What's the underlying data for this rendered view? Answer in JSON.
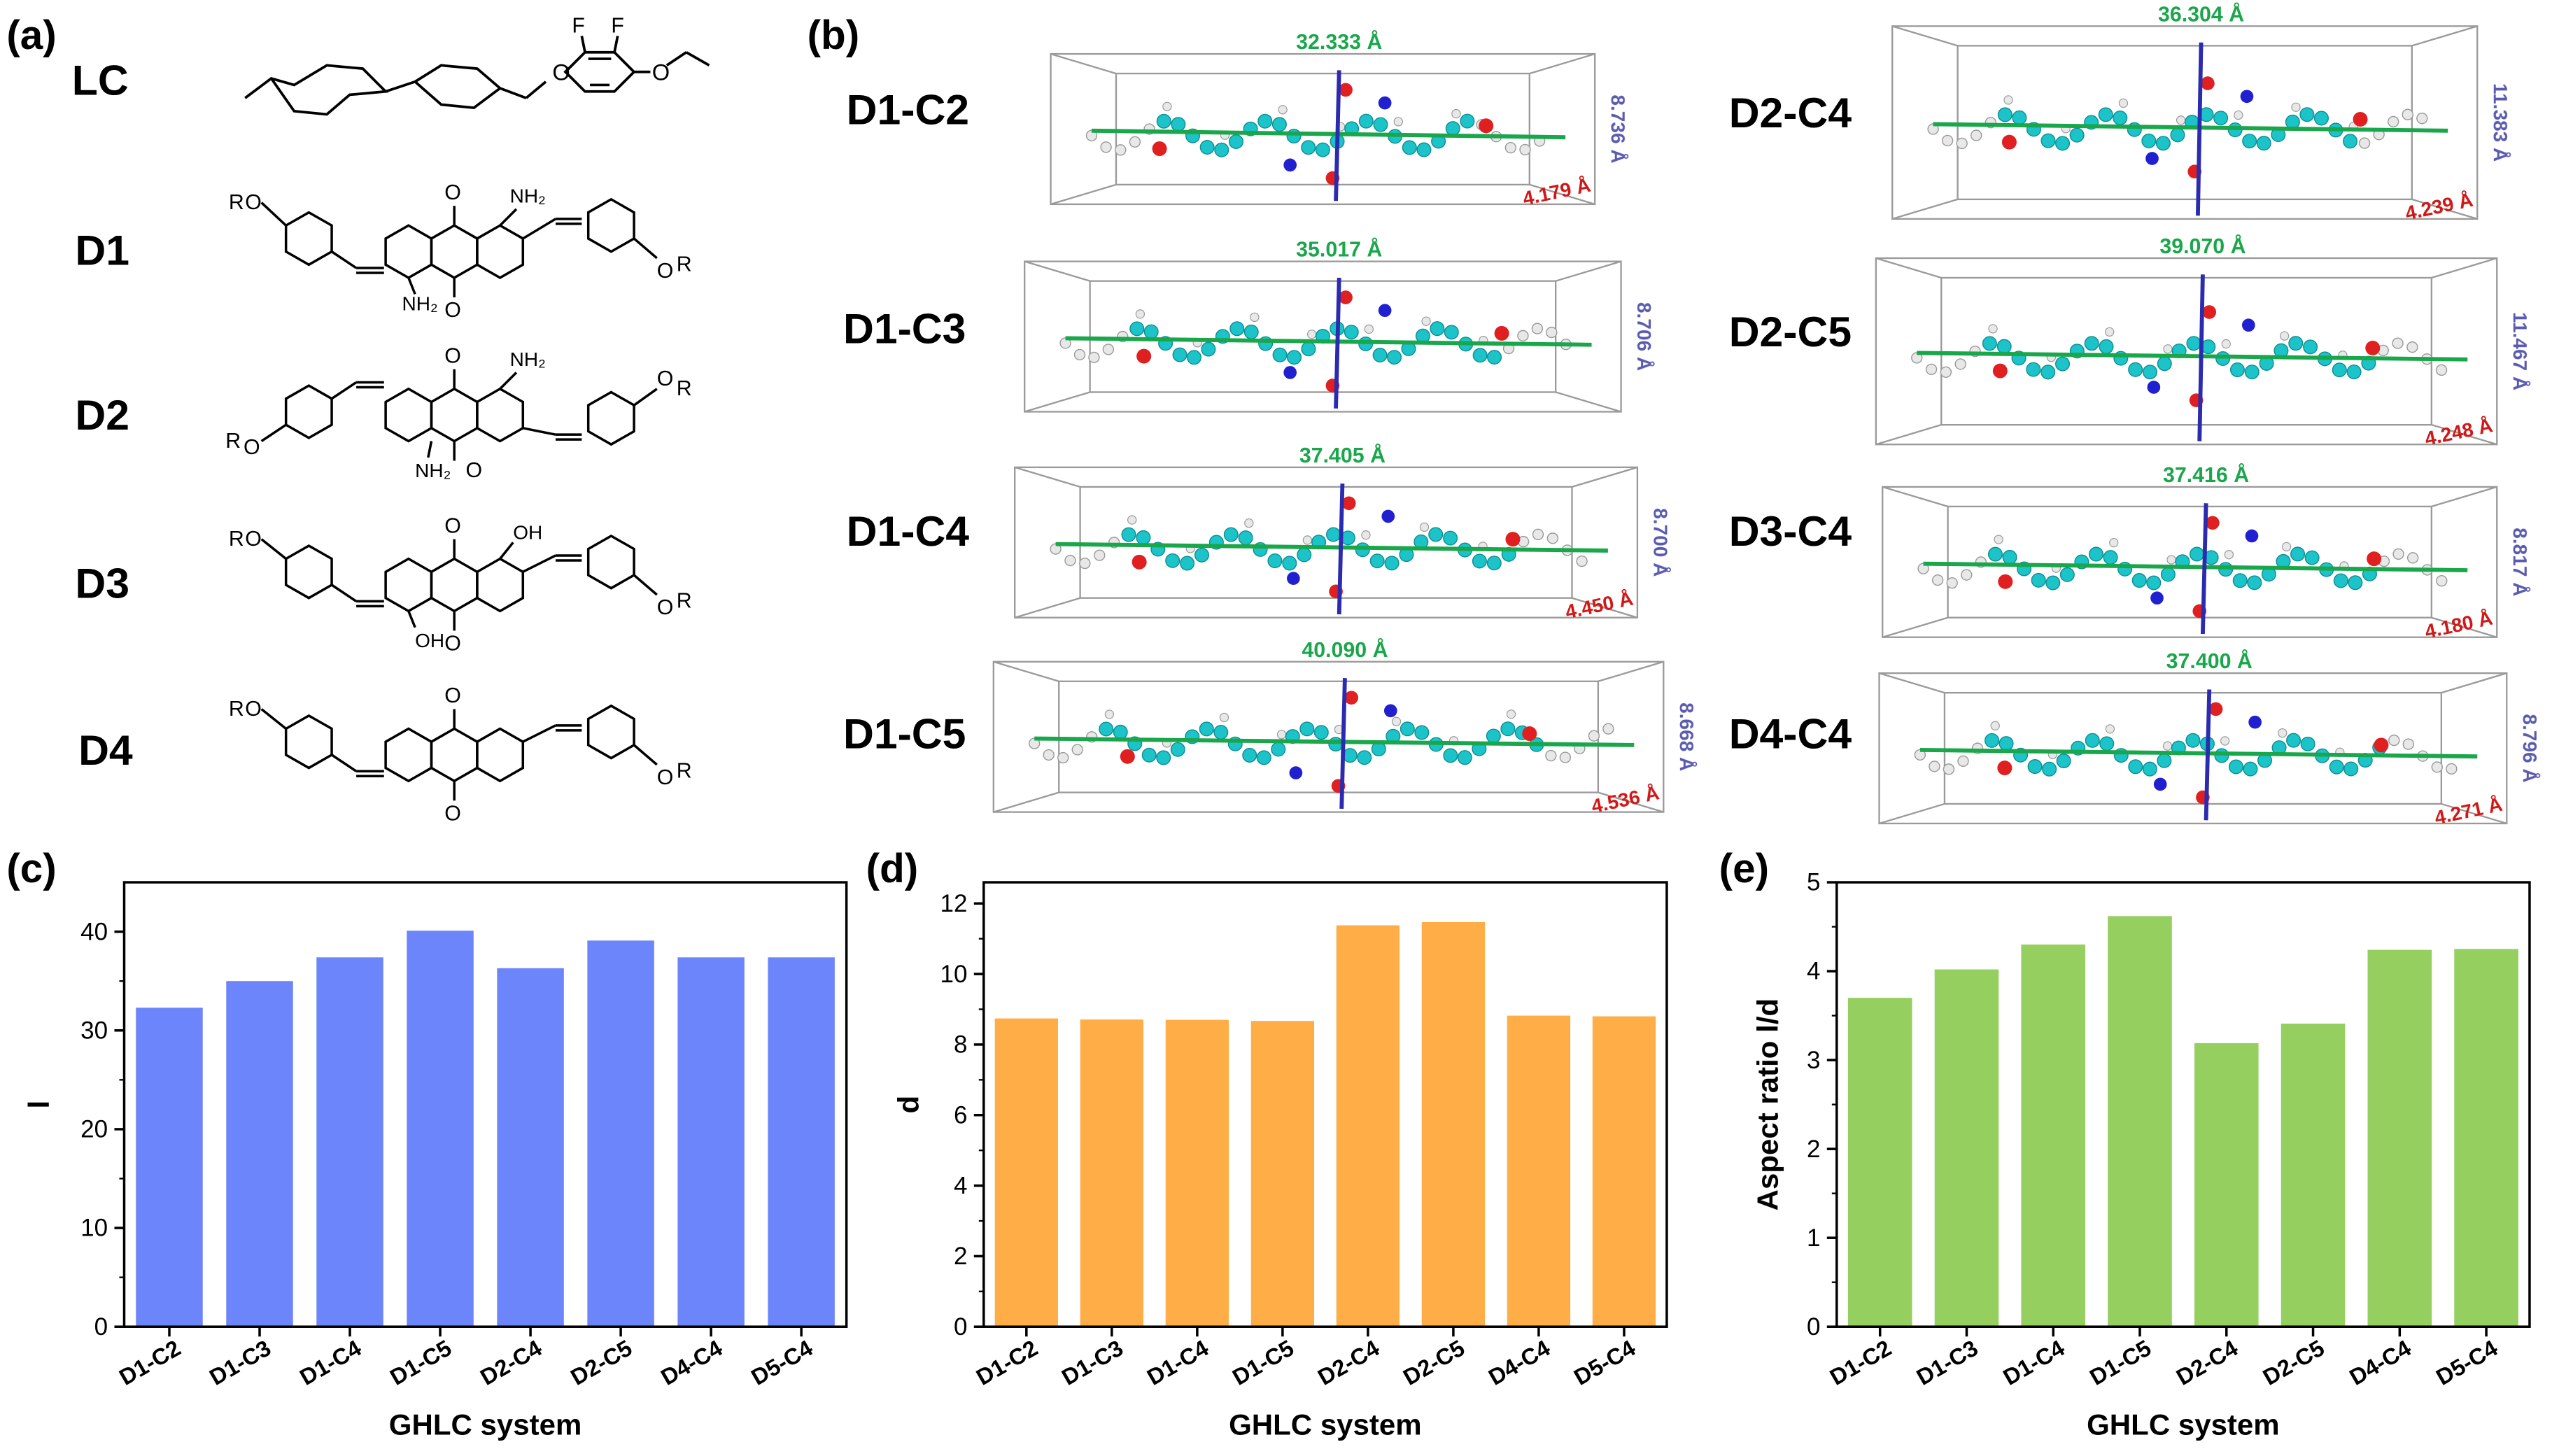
{
  "panels": {
    "a": "(a)",
    "b": "(b)",
    "c": "(c)",
    "d": "(d)",
    "e": "(e)"
  },
  "structures": {
    "names": [
      "LC",
      "D1",
      "D2",
      "D3",
      "D4"
    ],
    "atoms": {
      "F": "F",
      "O": "O",
      "NH2": "NH₂",
      "OH": "OH",
      "R": "R"
    }
  },
  "models": {
    "unit": "Å",
    "items": [
      {
        "name": "D1-C2",
        "length": "32.333 Å",
        "diameter": "8.736 Å",
        "width": "4.179 Å"
      },
      {
        "name": "D1-C3",
        "length": "35.017 Å",
        "diameter": "8.706 Å",
        "width": ""
      },
      {
        "name": "D1-C4",
        "length": "37.405 Å",
        "diameter": "8.700 Å",
        "width": "4.450 Å"
      },
      {
        "name": "D1-C5",
        "length": "40.090 Å",
        "diameter": "8.668 Å",
        "width": "4.536 Å"
      },
      {
        "name": "D2-C4",
        "length": "36.304 Å",
        "diameter": "11.383 Å",
        "width": "4.239 Å"
      },
      {
        "name": "D2-C5",
        "length": "39.070 Å",
        "diameter": "11.467 Å",
        "width": "4.248 Å"
      },
      {
        "name": "D3-C4",
        "length": "37.416 Å",
        "diameter": "8.817 Å",
        "width": "4.180 Å"
      },
      {
        "name": "D4-C4",
        "length": "37.400 Å",
        "diameter": "8.796 Å",
        "width": "4.271 Å"
      }
    ]
  },
  "colors": {
    "length_axis": "#1aa64a",
    "diameter_axis": "#2b2bb0",
    "carbon": "#1cc3c8",
    "oxygen": "#e02020",
    "nitrogen": "#2020d0",
    "hydrogen": "#e8e8e8",
    "bar_c": "#6d85fb",
    "bar_d": "#ffad47",
    "bar_e": "#94cf60"
  },
  "chart_data": [
    {
      "type": "bar",
      "panel": "(c)",
      "categories": [
        "D1-C2",
        "D1-C3",
        "D1-C4",
        "D1-C5",
        "D2-C4",
        "D2-C5",
        "D4-C4",
        "D5-C4"
      ],
      "values": [
        32.3,
        35.0,
        37.4,
        40.1,
        36.3,
        39.1,
        37.4,
        37.4
      ],
      "ylim": [
        0,
        45
      ],
      "yticks": [
        "0",
        "10",
        "20",
        "30",
        "40"
      ],
      "xlabel": "GHLC system",
      "ylabel": "l",
      "color": "#6d85fb"
    },
    {
      "type": "bar",
      "panel": "(d)",
      "categories": [
        "D1-C2",
        "D1-C3",
        "D1-C4",
        "D1-C5",
        "D2-C4",
        "D2-C5",
        "D4-C4",
        "D5-C4"
      ],
      "values": [
        8.74,
        8.71,
        8.7,
        8.67,
        11.38,
        11.47,
        8.82,
        8.8
      ],
      "ylim": [
        0,
        12.6
      ],
      "yticks": [
        "0",
        "2",
        "4",
        "6",
        "8",
        "10",
        "12"
      ],
      "xlabel": "GHLC system",
      "ylabel": "d",
      "color": "#ffad47"
    },
    {
      "type": "bar",
      "panel": "(e)",
      "categories": [
        "D1-C2",
        "D1-C3",
        "D1-C4",
        "D1-C5",
        "D2-C4",
        "D2-C5",
        "D4-C4",
        "D5-C4"
      ],
      "values": [
        3.7,
        4.02,
        4.3,
        4.62,
        3.19,
        3.41,
        4.24,
        4.25
      ],
      "ylim": [
        0,
        5
      ],
      "yticks": [
        "0",
        "1",
        "2",
        "3",
        "4",
        "5"
      ],
      "xlabel": "GHLC system",
      "ylabel": "Aspect ratio l/d",
      "color": "#94cf60"
    }
  ]
}
